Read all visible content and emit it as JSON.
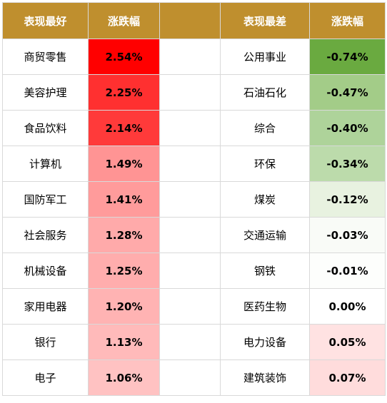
{
  "header": {
    "best_label": "表现最好",
    "change_label": "涨跌幅",
    "worst_label": "表现最差",
    "change_label_2": "涨跌幅",
    "background_color": "#BF8F2E"
  },
  "best": [
    {
      "industry": "商贸零售",
      "change": "2.54%",
      "color": "#FF0000"
    },
    {
      "industry": "美容护理",
      "change": "2.25%",
      "color": "#FF3030"
    },
    {
      "industry": "食品饮料",
      "change": "2.14%",
      "color": "#FF3A3A"
    },
    {
      "industry": "计算机",
      "change": "1.49%",
      "color": "#FF9494"
    },
    {
      "industry": "国防军工",
      "change": "1.41%",
      "color": "#FF9B9B"
    },
    {
      "industry": "社会服务",
      "change": "1.28%",
      "color": "#FFAAAA"
    },
    {
      "industry": "机械设备",
      "change": "1.25%",
      "color": "#FFADAD"
    },
    {
      "industry": "家用电器",
      "change": "1.20%",
      "color": "#FFB3B3"
    },
    {
      "industry": "银行",
      "change": "1.13%",
      "color": "#FFBABA"
    },
    {
      "industry": "电子",
      "change": "1.06%",
      "color": "#FFC2C2"
    }
  ],
  "worst": [
    {
      "industry": "公用事业",
      "change": "-0.74%",
      "color": "#6AAA40"
    },
    {
      "industry": "石油石化",
      "change": "-0.47%",
      "color": "#A3CC88"
    },
    {
      "industry": "综合",
      "change": "-0.40%",
      "color": "#AED39A"
    },
    {
      "industry": "环保",
      "change": "-0.34%",
      "color": "#BCDBAB"
    },
    {
      "industry": "煤炭",
      "change": "-0.12%",
      "color": "#E8F2E0"
    },
    {
      "industry": "交通运输",
      "change": "-0.03%",
      "color": "#F9FBF7"
    },
    {
      "industry": "钢铁",
      "change": "-0.01%",
      "color": "#FDFEFC"
    },
    {
      "industry": "医药生物",
      "change": "0.00%",
      "color": "#FFFFFF"
    },
    {
      "industry": "电力设备",
      "change": "0.05%",
      "color": "#FFE2E2"
    },
    {
      "industry": "建筑装饰",
      "change": "0.07%",
      "color": "#FFDCDC"
    }
  ]
}
